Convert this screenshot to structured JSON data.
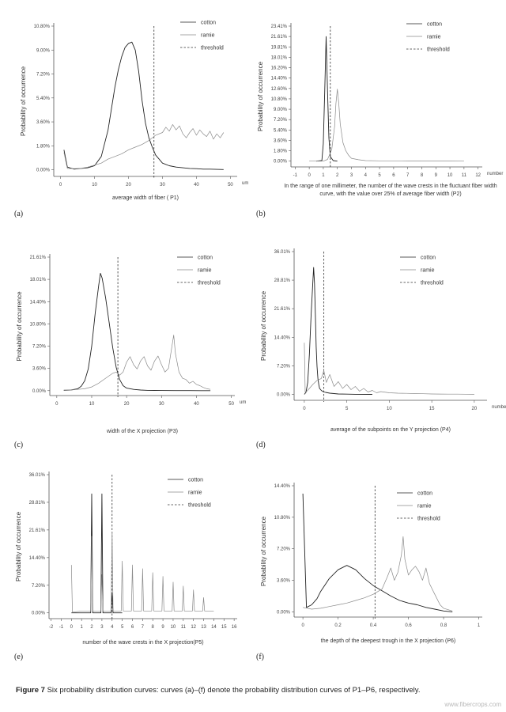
{
  "figure": {
    "caption_label": "Figure 7",
    "caption_text": "Six probability distribution curves: curves (a)–(f) denote the probability distribution curves of P1–P6, respectively.",
    "watermark": "www.fibercrops.com"
  },
  "chart_data": [
    {
      "panel": "(a)",
      "type": "line",
      "ylabel": "Probability of occurrence",
      "xlabel": "average width of fiber ( P1)",
      "xunit": "um",
      "xlim": [
        -2,
        52
      ],
      "ylim": [
        -0.5,
        10.8
      ],
      "xticks": [
        0,
        10,
        20,
        30,
        40,
        50
      ],
      "yticks": [
        "10.80%",
        "9.00%",
        "7.20%",
        "5.40%",
        "3.60%",
        "1.80%",
        "0.00%"
      ],
      "ytick_values": [
        10.8,
        9.0,
        7.2,
        5.4,
        3.6,
        1.8,
        0.0
      ],
      "threshold": 27.5,
      "legend": [
        "cotton",
        "ramie",
        "threshold"
      ],
      "series": [
        {
          "name": "cotton",
          "color": "#222222",
          "x": [
            1,
            2,
            4,
            6,
            8,
            10,
            12,
            14,
            15,
            16,
            17,
            18,
            19,
            20,
            21,
            22,
            23,
            24,
            25,
            26,
            27,
            28,
            29,
            30,
            32,
            34,
            36,
            38,
            40,
            42,
            44,
            46,
            48
          ],
          "y": [
            1.5,
            0.2,
            0.05,
            0.1,
            0.15,
            0.3,
            1.0,
            3.0,
            4.6,
            6.2,
            7.5,
            8.5,
            9.2,
            9.5,
            9.6,
            9.0,
            7.4,
            5.2,
            3.5,
            2.4,
            1.7,
            1.1,
            0.8,
            0.5,
            0.3,
            0.2,
            0.15,
            0.1,
            0.08,
            0.05,
            0.05,
            0.03,
            0.02
          ]
        },
        {
          "name": "ramie",
          "color": "#8a8a8a",
          "x": [
            1,
            2,
            4,
            6,
            8,
            10,
            12,
            14,
            16,
            18,
            20,
            22,
            24,
            26,
            28,
            30,
            31,
            32,
            33,
            34,
            35,
            36,
            37,
            38,
            39,
            40,
            41,
            42,
            43,
            44,
            45,
            46,
            47,
            48
          ],
          "y": [
            1.3,
            0.1,
            0.08,
            0.1,
            0.2,
            0.35,
            0.5,
            0.8,
            1.0,
            1.2,
            1.5,
            1.7,
            1.9,
            2.2,
            2.6,
            2.8,
            3.2,
            2.9,
            3.4,
            3.0,
            3.3,
            2.7,
            2.4,
            2.8,
            3.1,
            2.6,
            3.0,
            2.7,
            2.5,
            2.9,
            2.3,
            2.7,
            2.4,
            2.8
          ]
        }
      ]
    },
    {
      "panel": "(b)",
      "type": "line",
      "ylabel": "Probability of occurrence",
      "xlabel": "In the range of one millimeter, the number of the wave crests in the fluctuant fiber width curve, with the value over 25% of average fiber width (P2)",
      "xunit": "number",
      "xlim": [
        -1.3,
        12.3
      ],
      "ylim": [
        -1.0,
        23.41
      ],
      "xticks": [
        -1,
        0,
        1,
        2,
        3,
        4,
        5,
        6,
        7,
        8,
        9,
        10,
        11,
        12
      ],
      "yticks": [
        "23.41%",
        "21.61%",
        "19.81%",
        "18.01%",
        "16.20%",
        "14.40%",
        "12.60%",
        "10.80%",
        "9.00%",
        "7.20%",
        "5.40%",
        "3.60%",
        "1.80%",
        "0.00%"
      ],
      "ytick_values": [
        23.41,
        21.61,
        19.81,
        18.01,
        16.2,
        14.4,
        12.6,
        10.8,
        9.0,
        7.2,
        5.4,
        3.6,
        1.8,
        0.0
      ],
      "threshold": 1.5,
      "legend": [
        "cotton",
        "ramie",
        "threshold"
      ],
      "series": [
        {
          "name": "cotton",
          "color": "#222222",
          "x": [
            0.5,
            0.9,
            1.0,
            1.1,
            1.2,
            1.3,
            1.4,
            1.5,
            1.7,
            2.0
          ],
          "y": [
            0,
            0.1,
            3.0,
            12.0,
            21.6,
            12.0,
            4.0,
            0.8,
            0.1,
            0
          ]
        },
        {
          "name": "ramie",
          "color": "#8a8a8a",
          "x": [
            0,
            0.5,
            1,
            1.3,
            1.6,
            1.8,
            1.9,
            2.0,
            2.1,
            2.2,
            2.4,
            2.6,
            2.8,
            3.0,
            3.5,
            4,
            5,
            6,
            7,
            8,
            9,
            10,
            11
          ],
          "y": [
            0,
            0,
            0,
            0.3,
            2.0,
            6.0,
            10.0,
            12.5,
            10.0,
            6.5,
            3.2,
            1.8,
            1.0,
            0.5,
            0.25,
            0.1,
            0.05,
            0.05,
            0.03,
            0.02,
            0.02,
            0.01,
            0
          ]
        }
      ]
    },
    {
      "panel": "(c)",
      "type": "line",
      "ylabel": "Probability of occurrence",
      "xlabel": "width of the X projection  (P3)",
      "xunit": "um",
      "xlim": [
        -2,
        51
      ],
      "ylim": [
        -0.8,
        21.61
      ],
      "xticks": [
        0,
        10,
        20,
        30,
        40,
        50
      ],
      "yticks": [
        "21.61%",
        "18.01%",
        "14.40%",
        "10.80%",
        "7.20%",
        "3.60%",
        "0.00%"
      ],
      "ytick_values": [
        21.61,
        18.01,
        14.4,
        10.8,
        7.2,
        3.6,
        0.0
      ],
      "threshold": 17.5,
      "legend": [
        "cotton",
        "ramie",
        "threshold"
      ],
      "series": [
        {
          "name": "cotton",
          "color": "#222222",
          "x": [
            2,
            4,
            6,
            7,
            8,
            9,
            10,
            11,
            12,
            12.5,
            13,
            14,
            15,
            16,
            17,
            18,
            19,
            20,
            22,
            24,
            26,
            28,
            30,
            34,
            38,
            42,
            44
          ],
          "y": [
            0.05,
            0.1,
            0.3,
            0.7,
            1.6,
            3.5,
            7.2,
            12.5,
            17.0,
            19.0,
            18.2,
            15.0,
            11.0,
            7.0,
            3.8,
            1.8,
            0.8,
            0.4,
            0.2,
            0.1,
            0.05,
            0.03,
            0.02,
            0.01,
            0.01,
            0,
            0
          ]
        },
        {
          "name": "ramie",
          "color": "#8a8a8a",
          "x": [
            2,
            4,
            6,
            8,
            10,
            12,
            14,
            16,
            17,
            18,
            19,
            20,
            21,
            22,
            23,
            24,
            25,
            26,
            27,
            28,
            29,
            30,
            31,
            32,
            33,
            33.5,
            34,
            35,
            36,
            37,
            38,
            39,
            40,
            41,
            42,
            43,
            44
          ],
          "y": [
            0.1,
            0.1,
            0.2,
            0.3,
            0.6,
            1.2,
            2.0,
            2.8,
            3.0,
            2.5,
            3.0,
            4.6,
            5.5,
            4.2,
            3.5,
            4.8,
            5.5,
            4.0,
            3.3,
            4.8,
            5.6,
            4.2,
            3.0,
            3.6,
            7.2,
            9.0,
            6.0,
            3.0,
            2.0,
            1.8,
            1.2,
            1.5,
            1.0,
            0.8,
            0.5,
            0.3,
            0.2
          ]
        }
      ]
    },
    {
      "panel": "(d)",
      "type": "line",
      "ylabel": "Probability of occurrence",
      "xlabel": "average of the subpoints on the Y projection  (P4)",
      "xunit": "number",
      "xlim": [
        -1.2,
        21.5
      ],
      "ylim": [
        -1.5,
        36.01
      ],
      "xticks": [
        0,
        5,
        10,
        15,
        20
      ],
      "yticks": [
        "36.01%",
        "28.81%",
        "21.61%",
        "14.40%",
        "7.20%",
        "0.00%"
      ],
      "ytick_values": [
        36.01,
        28.81,
        21.61,
        14.4,
        7.2,
        0.0
      ],
      "threshold": 2.3,
      "legend": [
        "cotton",
        "ramie",
        "threshold"
      ],
      "series": [
        {
          "name": "cotton",
          "color": "#222222",
          "x": [
            0,
            0.2,
            0.4,
            0.6,
            0.8,
            1.0,
            1.1,
            1.2,
            1.3,
            1.4,
            1.5,
            1.6,
            1.7,
            1.8,
            2.0,
            2.2,
            2.5,
            3.0,
            3.5,
            4.0,
            5.0,
            6.0,
            8.0
          ],
          "y": [
            0,
            0.5,
            3.0,
            10.0,
            20.0,
            28.0,
            32.0,
            28.0,
            20.0,
            12.0,
            7.0,
            4.0,
            2.5,
            1.5,
            1.0,
            0.7,
            0.5,
            0.3,
            0.2,
            0.1,
            0.05,
            0.02,
            0
          ]
        },
        {
          "name": "ramie",
          "color": "#8a8a8a",
          "x": [
            0,
            0.1,
            0.3,
            0.6,
            1.0,
            1.5,
            2.0,
            2.3,
            2.6,
            3.0,
            3.5,
            4.0,
            4.5,
            5.0,
            5.5,
            6.0,
            6.5,
            7.0,
            7.5,
            8.0,
            8.5,
            9.0,
            10,
            11,
            12,
            13,
            14,
            15,
            16,
            17,
            18,
            19,
            20
          ],
          "y": [
            13.0,
            0.5,
            0.8,
            1.5,
            2.5,
            3.5,
            4.0,
            6.0,
            3.0,
            5.0,
            2.0,
            3.2,
            1.5,
            2.5,
            1.2,
            2.0,
            0.8,
            1.5,
            0.6,
            1.0,
            0.4,
            0.7,
            0.4,
            0.3,
            0.25,
            0.2,
            0.15,
            0.1,
            0.08,
            0.05,
            0.05,
            0.03,
            0.02
          ]
        }
      ]
    },
    {
      "panel": "(e)",
      "type": "line",
      "ylabel": "Probability of occurrence",
      "xlabel": "number of the wave crests in the X projection(P5)",
      "xunit": "",
      "xlim": [
        -2.2,
        16.3
      ],
      "ylim": [
        -1.5,
        36.01
      ],
      "xticks": [
        -2,
        -1,
        0,
        1,
        2,
        3,
        4,
        5,
        6,
        7,
        8,
        9,
        10,
        11,
        12,
        13,
        14,
        15,
        16
      ],
      "yticks": [
        "36.01%",
        "28.81%",
        "21.61%",
        "14.40%",
        "7.20%",
        "0.00%"
      ],
      "ytick_values": [
        36.01,
        28.81,
        21.61,
        14.4,
        7.2,
        0.0
      ],
      "threshold": 4.0,
      "legend": [
        "cotton",
        "ramie",
        "threshold"
      ],
      "series": [
        {
          "name": "cotton",
          "color": "#222222",
          "x": [
            0,
            0.1,
            1.9,
            2.0,
            2.1,
            2.9,
            3.0,
            3.1,
            3.9,
            4.0,
            4.1,
            5
          ],
          "y": [
            0,
            0,
            0,
            31.0,
            0,
            0,
            31.0,
            0,
            0,
            5.0,
            0,
            0
          ]
        },
        {
          "name": "ramie",
          "color": "#8a8a8a",
          "x": [
            0,
            0.1,
            1.0,
            1.9,
            2.0,
            2.1,
            2.9,
            3.0,
            3.1,
            3.9,
            4.0,
            4.1,
            4.9,
            5.0,
            5.1,
            5.9,
            6.0,
            6.1,
            6.9,
            7.0,
            7.1,
            7.9,
            8.0,
            8.1,
            8.9,
            9.0,
            9.1,
            9.9,
            10.0,
            10.1,
            10.9,
            11.0,
            11.1,
            11.9,
            12.0,
            12.1,
            12.9,
            13.0,
            13.1,
            14.0
          ],
          "y": [
            12.5,
            0.2,
            0.5,
            0.5,
            20.0,
            0.5,
            0.5,
            10.0,
            0.5,
            0.5,
            21.0,
            0.5,
            0.5,
            13.5,
            0.5,
            0.5,
            12.5,
            0.5,
            0.5,
            11.5,
            0.5,
            0.5,
            10.5,
            0.5,
            0.5,
            9.5,
            0.5,
            0.5,
            8.0,
            0.5,
            0.5,
            7.0,
            0.5,
            0.5,
            6.0,
            0.5,
            0.5,
            4.0,
            0.5,
            0.5
          ]
        }
      ]
    },
    {
      "panel": "(f)",
      "type": "line",
      "ylabel": "Probability of occurrence",
      "xlabel": "the depth of the deepest trough in the X projection  (P6)",
      "xunit": "",
      "xlim": [
        -0.05,
        1.02
      ],
      "ylim": [
        -0.6,
        14.4
      ],
      "xticks": [
        0.0,
        0.2,
        0.4,
        0.6,
        0.8,
        1.0
      ],
      "yticks": [
        "14.40%",
        "10.80%",
        "7.20%",
        "3.60%",
        "0.00%"
      ],
      "ytick_values": [
        14.4,
        10.8,
        7.2,
        3.6,
        0.0
      ],
      "threshold": 0.41,
      "legend": [
        "cotton",
        "ramie",
        "threshold"
      ],
      "series": [
        {
          "name": "cotton",
          "color": "#222222",
          "x": [
            0.0,
            0.02,
            0.05,
            0.08,
            0.1,
            0.15,
            0.2,
            0.25,
            0.3,
            0.35,
            0.4,
            0.45,
            0.5,
            0.55,
            0.6,
            0.65,
            0.7,
            0.75,
            0.8,
            0.85
          ],
          "y": [
            13.5,
            0.5,
            0.8,
            1.5,
            2.3,
            3.8,
            4.8,
            5.3,
            4.8,
            3.8,
            3.0,
            2.4,
            1.8,
            1.3,
            1.0,
            0.8,
            0.5,
            0.3,
            0.1,
            0
          ]
        },
        {
          "name": "ramie",
          "color": "#8a8a8a",
          "x": [
            0.0,
            0.05,
            0.1,
            0.15,
            0.2,
            0.25,
            0.3,
            0.35,
            0.4,
            0.45,
            0.48,
            0.5,
            0.52,
            0.54,
            0.56,
            0.57,
            0.58,
            0.6,
            0.62,
            0.64,
            0.66,
            0.68,
            0.7,
            0.72,
            0.75,
            0.78,
            0.8,
            0.85
          ],
          "y": [
            0.5,
            0.3,
            0.4,
            0.6,
            0.8,
            1.0,
            1.3,
            1.6,
            2.0,
            2.6,
            4.0,
            5.0,
            3.6,
            4.5,
            6.5,
            8.6,
            6.0,
            4.2,
            4.8,
            5.2,
            4.6,
            3.6,
            5.0,
            3.2,
            2.0,
            0.8,
            0.4,
            0.1
          ]
        }
      ]
    }
  ]
}
